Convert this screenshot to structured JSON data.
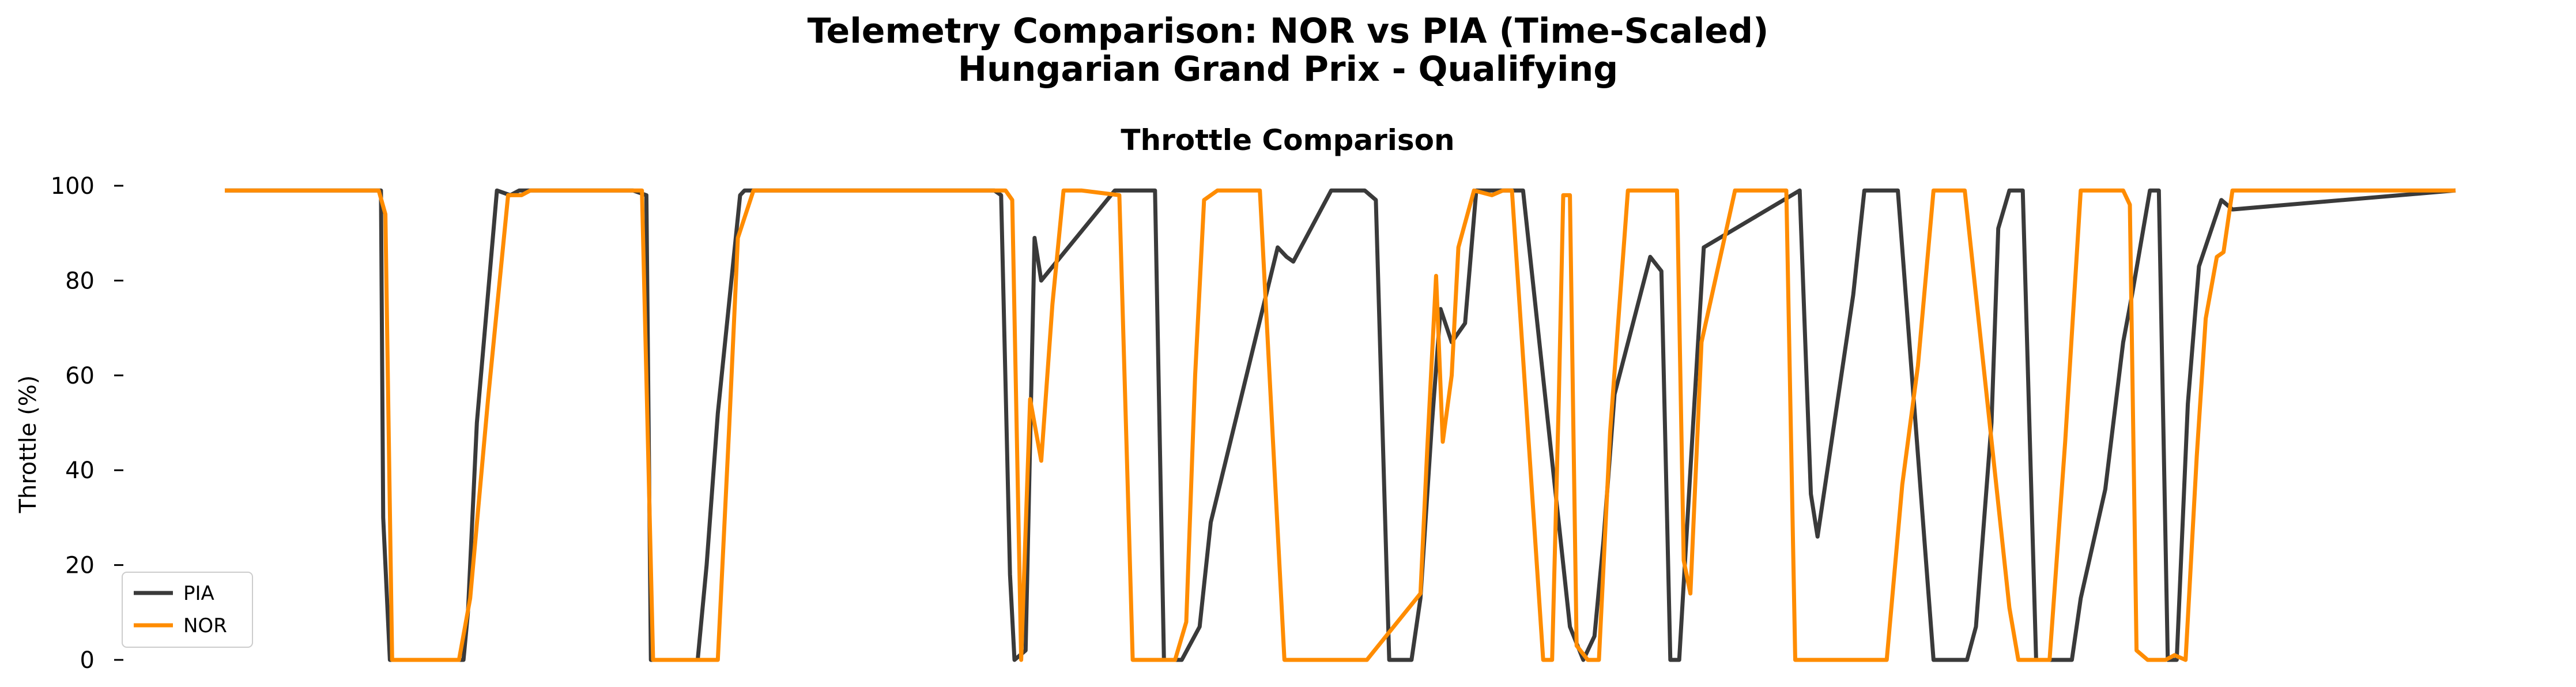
{
  "figure": {
    "title_line1": "Telemetry Comparison: NOR vs PIA (Time-Scaled)",
    "title_line2": "Hungarian Grand Prix - Qualifying"
  },
  "chart_data": {
    "type": "line",
    "title": "Throttle Comparison",
    "xlabel": "",
    "ylabel": "Throttle (%)",
    "xlim": [
      0,
      100
    ],
    "ylim": [
      0,
      100
    ],
    "yticks": [
      0,
      20,
      40,
      60,
      80,
      100
    ],
    "grid": false,
    "legend_position": "bottom-left",
    "series": [
      {
        "name": "PIA",
        "color": "#3a3a3a",
        "x": [
          0,
          6.9,
          7.0,
          7.1,
          7.4,
          10.7,
          10.9,
          11.3,
          12.2,
          12.8,
          13.2,
          18.3,
          18.9,
          19.1,
          21.2,
          21.6,
          22.1,
          23.1,
          23.3,
          34.5,
          34.8,
          35.2,
          35.4,
          35.9,
          36.3,
          36.6,
          39.9,
          40.1,
          41.7,
          42.1,
          42.5,
          42.9,
          43.7,
          44.2,
          47.2,
          47.6,
          47.9,
          49.6,
          50.2,
          50.6,
          51.1,
          51.6,
          52.2,
          53.2,
          53.6,
          54.1,
          54.5,
          55.0,
          55.6,
          56.1,
          57.1,
          57.7,
          58.2,
          60.3,
          60.9,
          61.4,
          61.8,
          62.3,
          63.9,
          64.4,
          64.8,
          65.2,
          65.8,
          66.3,
          70.6,
          71.1,
          71.4,
          73.0,
          73.5,
          74.5,
          75.0,
          76.6,
          78.1,
          78.5,
          79.2,
          79.5,
          80.0,
          80.6,
          81.2,
          82.8,
          83.2,
          84.3,
          85.1,
          85.5,
          85.9,
          86.3,
          86.7,
          87.1,
          87.5,
          88.0,
          88.5,
          89.0,
          89.5,
          90.0,
          100
        ],
        "y": [
          99,
          99,
          99,
          30,
          0,
          0,
          10,
          50,
          99,
          98,
          99,
          99,
          98,
          0,
          0,
          20,
          52,
          98,
          99,
          99,
          98,
          18,
          0,
          2,
          89,
          80,
          99,
          99,
          99,
          0,
          0,
          0,
          7,
          29,
          87,
          85,
          84,
          99,
          99,
          99,
          99,
          97,
          0,
          0,
          13,
          49,
          74,
          67,
          71,
          99,
          99,
          99,
          99,
          7,
          0,
          5,
          25,
          56,
          85,
          82,
          0,
          0,
          48,
          87,
          99,
          35,
          26,
          77,
          99,
          99,
          99,
          0,
          0,
          7,
          50,
          91,
          99,
          99,
          0,
          0,
          13,
          36,
          67,
          77,
          88,
          99,
          99,
          0,
          0,
          54,
          83,
          90,
          97,
          95,
          99
        ],
        "x_sorted": true
      },
      {
        "name": "NOR",
        "color": "#ff8c00",
        "x": [
          0,
          6.9,
          7.2,
          7.5,
          10.5,
          11.0,
          11.8,
          12.7,
          13.3,
          13.7,
          18.7,
          19.2,
          22.1,
          22.6,
          23.0,
          23.7,
          24.5,
          35.0,
          35.3,
          35.7,
          36.1,
          36.6,
          37.1,
          37.6,
          38.4,
          40.1,
          40.7,
          41.2,
          42.6,
          43.1,
          43.5,
          43.9,
          44.5,
          45.3,
          46.0,
          46.4,
          47.5,
          49.4,
          51.2,
          53.6,
          53.9,
          54.3,
          54.6,
          55.0,
          55.3,
          56.0,
          56.8,
          57.3,
          57.7,
          59.1,
          59.5,
          59.8,
          60.0,
          60.3,
          60.6,
          61.1,
          61.6,
          62.1,
          62.9,
          63.4,
          64.5,
          64.8,
          65.1,
          65.4,
          65.7,
          66.2,
          67.7,
          68.3,
          68.8,
          69.2,
          69.6,
          70.0,
          70.4,
          71.0,
          72.0,
          74.5,
          75.2,
          75.9,
          76.6,
          77.1,
          77.6,
          78.0,
          80.0,
          80.4,
          80.8,
          81.8,
          82.5,
          83.2,
          85.1,
          85.4,
          85.7,
          86.2,
          86.6,
          87.0,
          87.4,
          87.9,
          88.4,
          88.8,
          89.3,
          89.6,
          90.0,
          90.4,
          100
        ],
        "y": [
          99,
          99,
          94,
          0,
          0,
          13,
          55,
          98,
          98,
          99,
          99,
          0,
          0,
          48,
          89,
          99,
          99,
          99,
          97,
          0,
          55,
          42,
          75,
          99,
          99,
          98,
          0,
          0,
          0,
          8,
          60,
          97,
          99,
          99,
          99,
          99,
          0,
          0,
          0,
          14,
          44,
          81,
          46,
          60,
          87,
          99,
          98,
          99,
          99,
          0,
          0,
          55,
          98,
          98,
          3,
          0,
          0,
          48,
          99,
          99,
          99,
          99,
          99,
          21,
          14,
          67,
          99,
          99,
          99,
          99,
          99,
          99,
          0,
          0,
          0,
          0,
          37,
          62,
          99,
          99,
          99,
          99,
          11,
          0,
          0,
          0,
          46,
          99,
          99,
          96,
          2,
          0,
          0,
          0,
          1,
          0,
          43,
          72,
          85,
          86,
          99,
          99,
          99
        ]
      }
    ]
  }
}
